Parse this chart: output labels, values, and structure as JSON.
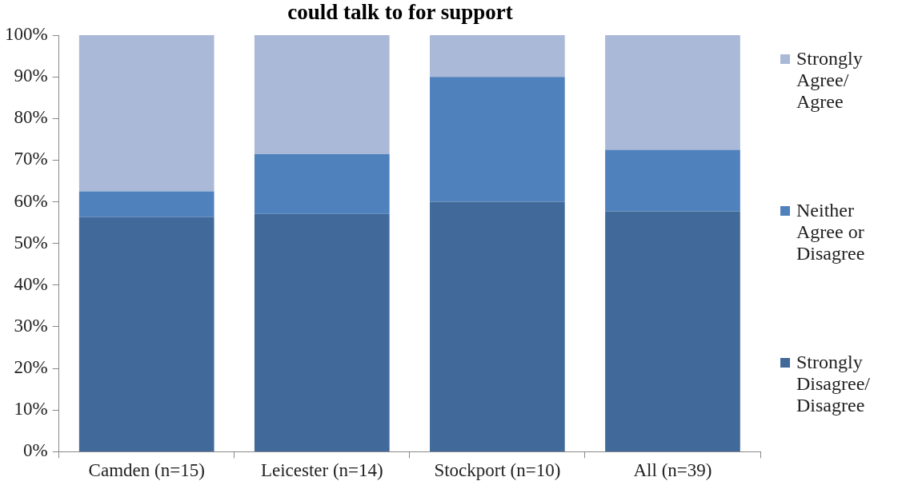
{
  "chart_data": {
    "type": "bar",
    "title": "could talk to for support",
    "stacked": true,
    "categories": [
      "Camden (n=15)",
      "Leicester (n=14)",
      "Stockport (n=10)",
      "All (n=39)"
    ],
    "series": [
      {
        "name": "Strongly Disagree/ Disagree",
        "color": "#416a9b",
        "values": [
          56.3,
          57.1,
          60,
          57.7
        ]
      },
      {
        "name": "Neither Agree or Disagree",
        "color": "#4f81bd",
        "values": [
          6.2,
          14.3,
          30,
          14.8
        ]
      },
      {
        "name": "Strongly Agree/ Agree",
        "color": "#aab9d7",
        "values": [
          37.5,
          28.6,
          10,
          27.5
        ]
      }
    ],
    "ylim": [
      0,
      100
    ],
    "yticks": [
      {
        "value": 0,
        "label": "0%"
      },
      {
        "value": 10,
        "label": "10%"
      },
      {
        "value": 20,
        "label": "20%"
      },
      {
        "value": 30,
        "label": "30%"
      },
      {
        "value": 40,
        "label": "40%"
      },
      {
        "value": 50,
        "label": "50%"
      },
      {
        "value": 60,
        "label": "60%"
      },
      {
        "value": 70,
        "label": "70%"
      },
      {
        "value": 80,
        "label": "80%"
      },
      {
        "value": 90,
        "label": "90%"
      },
      {
        "value": 100,
        "label": "100%"
      }
    ],
    "grid": false,
    "legend": "right"
  }
}
